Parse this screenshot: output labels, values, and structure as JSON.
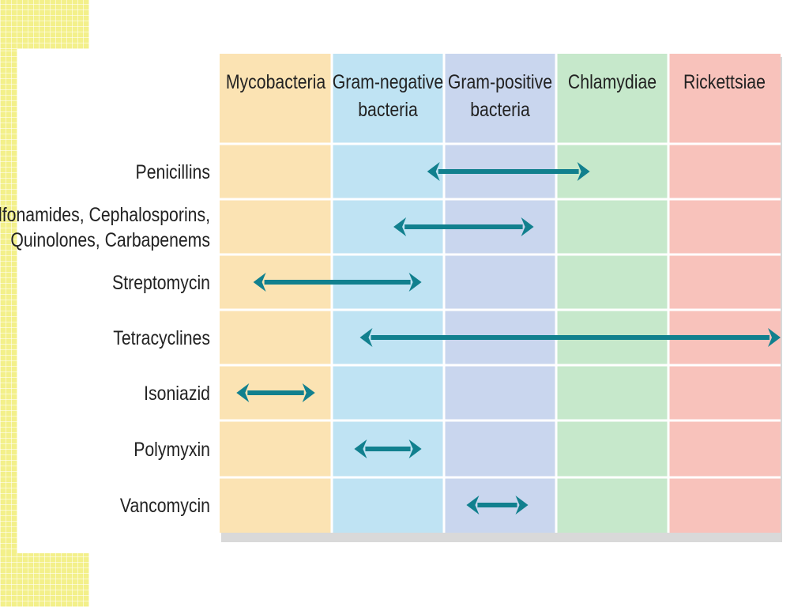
{
  "chart_data": {
    "type": "table",
    "columns": [
      {
        "label": [
          "Mycobacteria"
        ],
        "color": "#fbe3b3"
      },
      {
        "label": [
          "Gram-negative",
          "bacteria"
        ],
        "color": "#bfe3f3"
      },
      {
        "label": [
          "Gram-positive",
          "bacteria"
        ],
        "color": "#c9d6ee"
      },
      {
        "label": [
          "Chlamydiae"
        ],
        "color": "#c6e8cb"
      },
      {
        "label": [
          "Rickettsiae"
        ],
        "color": "#f8c2bb"
      }
    ],
    "rows": [
      {
        "label": [
          "Penicillins"
        ],
        "from": 1.85,
        "to": 3.3
      },
      {
        "label": [
          "Sulfonamides, Cephalosporins,",
          "Quinolones, Carbapenems"
        ],
        "from": 1.55,
        "to": 2.8
      },
      {
        "label": [
          "Streptomycin"
        ],
        "from": 0.3,
        "to": 1.8
      },
      {
        "label": [
          "Tetracyclines"
        ],
        "from": 1.25,
        "to": 5.0
      },
      {
        "label": [
          "Isoniazid"
        ],
        "from": 0.15,
        "to": 0.85
      },
      {
        "label": [
          "Polymyxin"
        ],
        "from": 1.2,
        "to": 1.8
      },
      {
        "label": [
          "Vancomycin"
        ],
        "from": 2.2,
        "to": 2.75
      }
    ],
    "arrow_color": "#11808e"
  }
}
